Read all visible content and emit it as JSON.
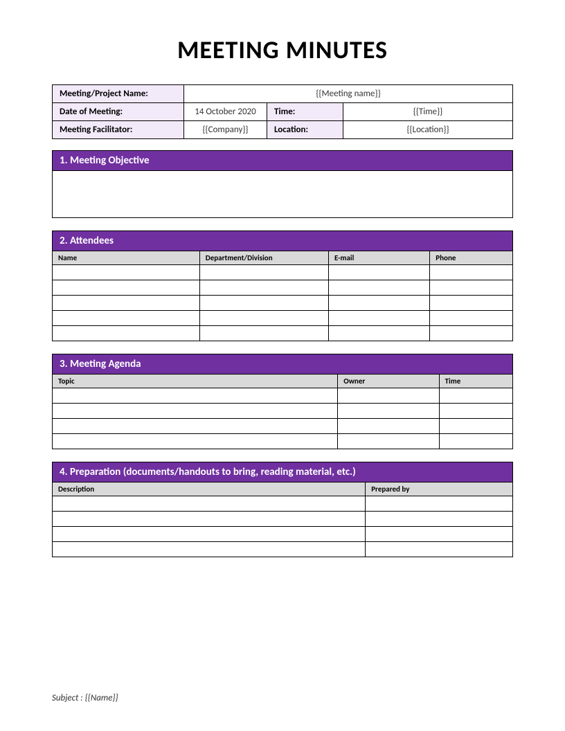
{
  "title": "MEETING MINUTES",
  "colors": {
    "section_header_bg": "#7030a0",
    "section_header_fg": "#ffffff",
    "info_label_bg": "#f3eaf9",
    "col_header_bg": "#d9d9d9",
    "border": "#000000",
    "background": "#ffffff"
  },
  "info": {
    "meeting_name_label": "Meeting/Project Name:",
    "meeting_name_value": "{{Meeting name}}",
    "date_label": "Date of Meeting:",
    "date_value": "14 October 2020",
    "time_label": "Time:",
    "time_value": "{{Time}}",
    "facilitator_label": "Meeting Facilitator:",
    "facilitator_value": "{{Company}}",
    "location_label": "Location:",
    "location_value": "{{Location}}"
  },
  "sections": {
    "objective": {
      "header": "1. Meeting Objective"
    },
    "attendees": {
      "header": "2. Attendees",
      "columns": [
        "Name",
        "Department/Division",
        "E-mail",
        "Phone"
      ],
      "row_count": 5
    },
    "agenda": {
      "header": "3. Meeting Agenda",
      "columns": [
        "Topic",
        "Owner",
        "Time"
      ],
      "col_widths": [
        "62%",
        "22%",
        "16%"
      ],
      "row_count": 4
    },
    "preparation": {
      "header": "4. Preparation (documents/handouts to bring, reading material, etc.)",
      "columns": [
        "Description",
        "Prepared by"
      ],
      "col_widths": [
        "68%",
        "32%"
      ],
      "row_count": 4
    }
  },
  "footer": {
    "subject_label": "Subject : ",
    "subject_value": "{{Name}}"
  }
}
